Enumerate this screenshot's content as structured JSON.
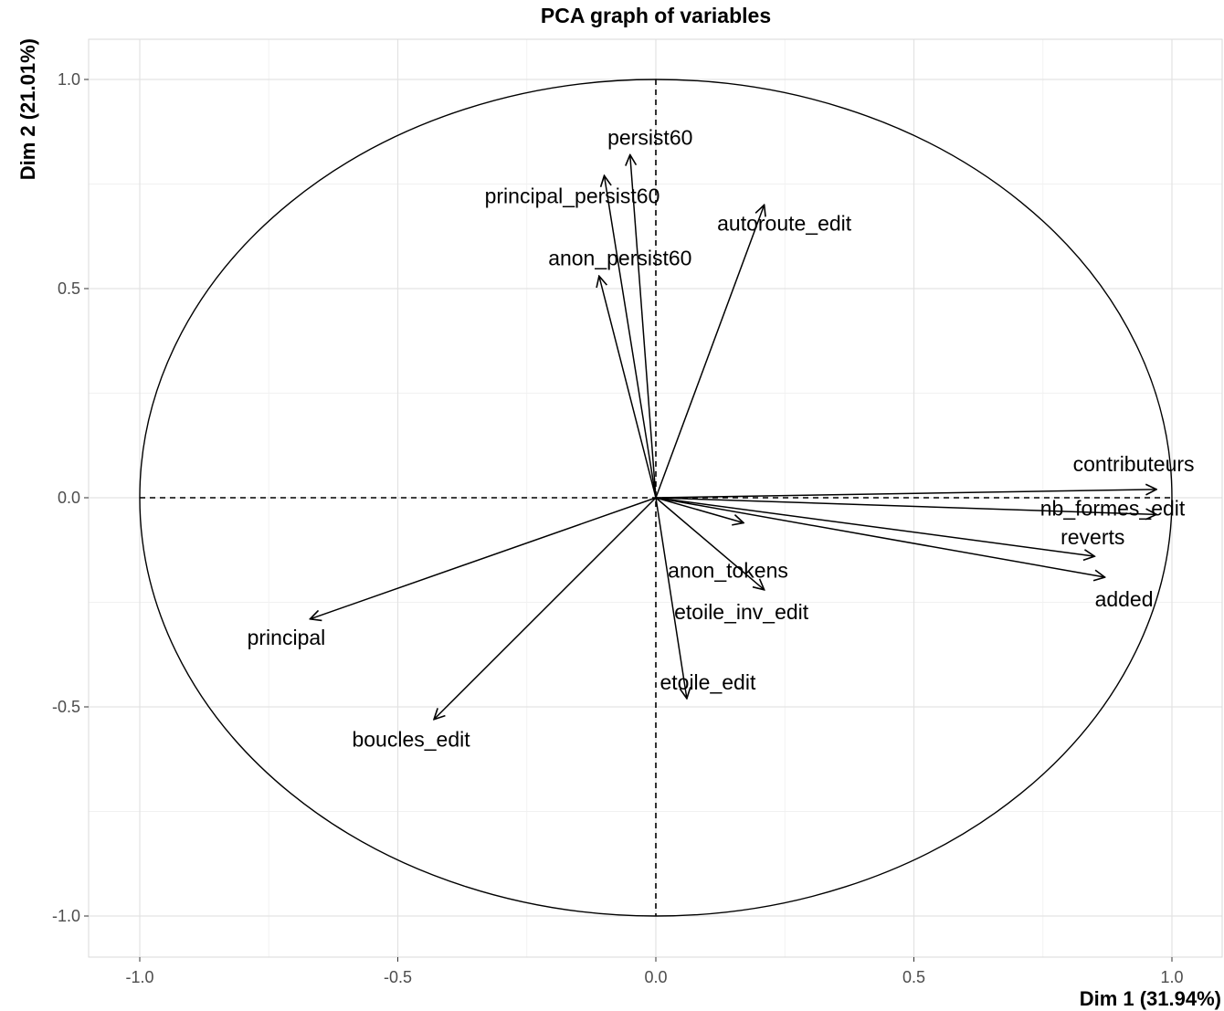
{
  "chart_data": {
    "type": "scatter",
    "subtype": "pca-variable-correlation-circle",
    "title": "PCA graph of variables",
    "xlabel": "Dim 1 (31.94%)",
    "ylabel": "Dim 2 (21.01%)",
    "xlim": [
      -1.1,
      1.1
    ],
    "ylim": [
      -1.1,
      1.1
    ],
    "xticks": [
      "-1.0",
      "-0.5",
      "0.0",
      "0.5",
      "1.0"
    ],
    "yticks": [
      "-1.0",
      "-0.5",
      "0.0",
      "0.5",
      "1.0"
    ],
    "grid": true,
    "unit_circle": true,
    "reference_lines": "dashed at x=0 and y=0",
    "variables": [
      {
        "name": "contributeurs",
        "x": 0.97,
        "y": 0.02
      },
      {
        "name": "nb_formes_edit",
        "x": 0.97,
        "y": -0.04
      },
      {
        "name": "reverts",
        "x": 0.85,
        "y": -0.14
      },
      {
        "name": "added",
        "x": 0.87,
        "y": -0.19
      },
      {
        "name": "anon_tokens",
        "x": 0.17,
        "y": -0.06
      },
      {
        "name": "etoile_inv_edit",
        "x": 0.21,
        "y": -0.22
      },
      {
        "name": "etoile_edit",
        "x": 0.06,
        "y": -0.48
      },
      {
        "name": "boucles_edit",
        "x": -0.43,
        "y": -0.53
      },
      {
        "name": "principal",
        "x": -0.67,
        "y": -0.29
      },
      {
        "name": "anon_persist60",
        "x": -0.11,
        "y": 0.53
      },
      {
        "name": "principal_persist60",
        "x": -0.1,
        "y": 0.77
      },
      {
        "name": "persist60",
        "x": -0.05,
        "y": 0.82
      },
      {
        "name": "autoroute_edit",
        "x": 0.21,
        "y": 0.7
      }
    ]
  }
}
